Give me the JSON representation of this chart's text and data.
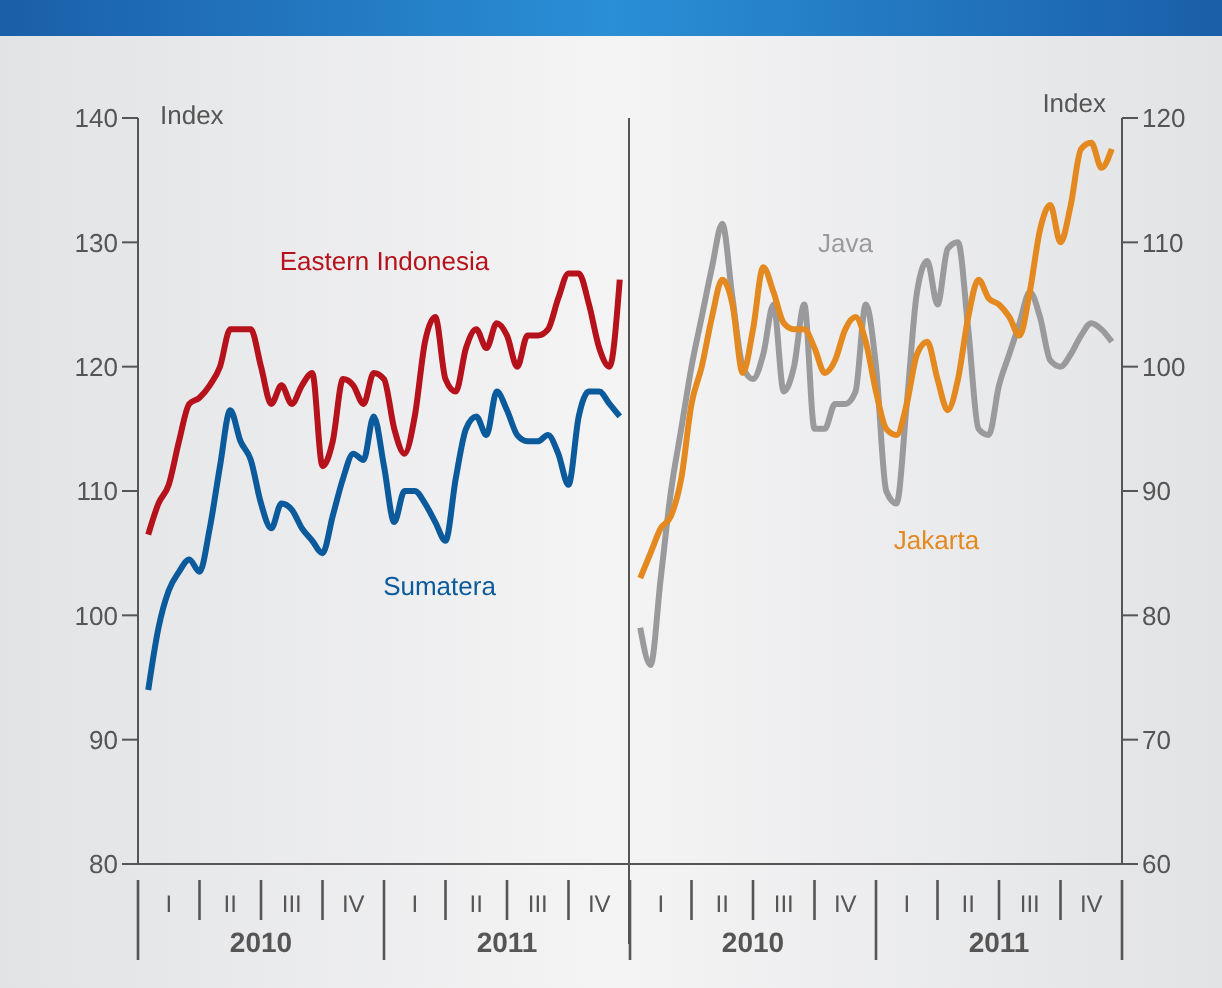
{
  "chart_data": [
    {
      "type": "line",
      "ylabel": "Index",
      "ylim": [
        80,
        140
      ],
      "yticks": [
        80,
        90,
        100,
        110,
        120,
        130,
        140
      ],
      "categories": [
        null,
        null,
        null,
        "I",
        null,
        null,
        null,
        null,
        null,
        "II",
        null,
        null,
        null,
        null,
        null,
        "III",
        null,
        null,
        null,
        null,
        null,
        "IV",
        null,
        null,
        null,
        null,
        null,
        "I",
        null,
        null,
        null,
        null,
        null,
        "II",
        null,
        null,
        null,
        null,
        null,
        "III",
        null,
        null,
        null,
        null,
        null,
        "IV",
        null,
        null
      ],
      "annotations": [
        "2010",
        "2011"
      ],
      "marker": "none",
      "line_style": "solid",
      "series": [
        {
          "name": "Eastern Indonesia",
          "color": "#b5121b",
          "values": [
            null,
            106.5,
            109,
            110.5,
            114,
            117,
            117.5,
            118.5,
            120,
            123,
            123,
            123,
            120,
            117,
            118.5,
            117,
            118.5,
            119.5,
            112,
            114,
            119,
            118.5,
            117,
            119.5,
            119,
            115,
            113,
            116,
            122,
            124,
            119,
            118,
            121.5,
            123,
            121.5,
            123.5,
            122.5,
            120,
            122.5,
            122.5,
            123,
            125.5,
            127.5,
            127.5,
            125,
            121.5,
            120,
            127
          ]
        },
        {
          "name": "Sumatera",
          "color": "#0a5a9c",
          "values": [
            null,
            94,
            99,
            102,
            103.5,
            104.5,
            103.5,
            107,
            112,
            116.5,
            114,
            112.5,
            109,
            107,
            109,
            108.5,
            107,
            106,
            105,
            108,
            111,
            113,
            112.5,
            116,
            112,
            107.5,
            110,
            110,
            109,
            107.5,
            106,
            111,
            115,
            116,
            114.5,
            118,
            116.5,
            114.5,
            114,
            114,
            114.5,
            113,
            110.5,
            116,
            118,
            118,
            117,
            116
          ]
        }
      ]
    },
    {
      "type": "line",
      "y2label": "Index",
      "y2lim": [
        60,
        120
      ],
      "y2ticks": [
        60,
        70,
        80,
        90,
        100,
        110,
        120
      ],
      "categories": [
        null,
        null,
        null,
        "I",
        null,
        null,
        null,
        null,
        null,
        "II",
        null,
        null,
        null,
        null,
        null,
        "III",
        null,
        null,
        null,
        null,
        null,
        "IV",
        null,
        null,
        null,
        null,
        null,
        "I",
        null,
        null,
        null,
        null,
        null,
        "II",
        null,
        null,
        null,
        null,
        null,
        "III",
        null,
        null,
        null,
        null,
        null,
        "IV",
        null,
        null
      ],
      "annotations": [
        "2010",
        "2011"
      ],
      "marker": "none",
      "line_style": "solid",
      "series": [
        {
          "name": "Java",
          "color": "#9a9a9c",
          "axis": "y2",
          "values": [
            null,
            79,
            76,
            83,
            90,
            95,
            100,
            104,
            108,
            111.5,
            105.5,
            100,
            99,
            101,
            105,
            98,
            100,
            105,
            95,
            95,
            97,
            97,
            98,
            105,
            100,
            90,
            89,
            97,
            106,
            108.5,
            105,
            109.5,
            110,
            103,
            95,
            94.5,
            98.5,
            101,
            103.5,
            106,
            104,
            100.5,
            100,
            101,
            102.5,
            103.5,
            103,
            102
          ]
        },
        {
          "name": "Jakarta",
          "color": "#e3891f",
          "axis": "y2",
          "values": [
            null,
            83,
            85,
            87,
            88,
            91,
            97,
            100,
            104,
            107,
            105,
            99.5,
            103,
            108,
            106,
            103.5,
            103,
            103,
            101.5,
            99.5,
            100.5,
            103,
            104,
            102,
            98,
            95,
            94.5,
            97,
            101,
            102,
            99,
            96.5,
            99,
            104,
            107,
            105.5,
            105,
            104,
            102.5,
            106,
            111,
            113,
            110,
            113,
            117.5,
            118,
            116,
            117.5
          ]
        }
      ]
    }
  ]
}
